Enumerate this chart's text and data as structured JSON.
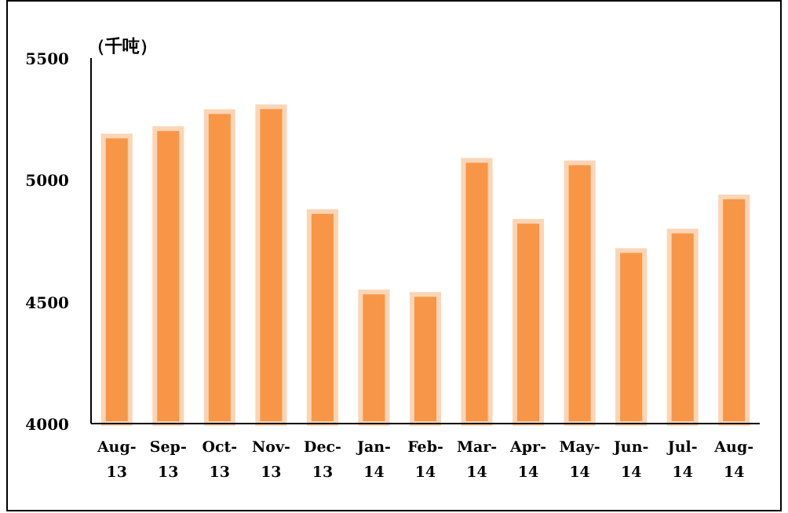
{
  "chart_data": {
    "type": "bar",
    "ylabel": "（千吨）",
    "categories": [
      "Aug-13",
      "Sep-13",
      "Oct-13",
      "Nov-13",
      "Dec-13",
      "Jan-14",
      "Feb-14",
      "Mar-14",
      "Apr-14",
      "May-14",
      "Jun-14",
      "Jul-14",
      "Aug-14"
    ],
    "values": [
      5180,
      5210,
      5280,
      5300,
      4870,
      4540,
      4530,
      5080,
      4830,
      5070,
      4710,
      4790,
      4930
    ],
    "color": "#f79646",
    "ylim": [
      4000,
      5500
    ],
    "yticks": [
      4000,
      4500,
      5000,
      5500
    ]
  }
}
